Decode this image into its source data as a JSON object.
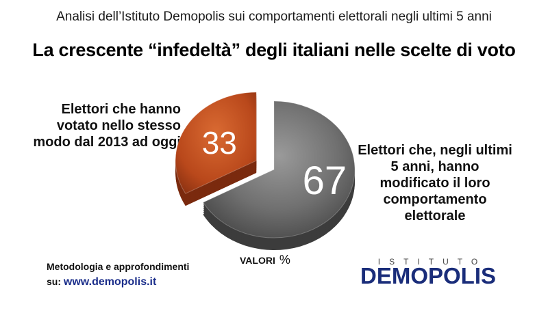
{
  "header": {
    "subtitle": "Analisi dell’Istituto Demopolis sui comportamenti elettorali negli ultimi 5 anni",
    "title": "La crescente “infedeltà” degli italiani nelle scelte di voto"
  },
  "chart_data": {
    "type": "pie",
    "title": "La crescente “infedeltà” degli italiani nelle scelte di voto",
    "unit": "VALORI %",
    "slices": [
      {
        "label": "Elettori che hanno votato nello stesso modo dal 2013 ad oggi",
        "value": 33,
        "display": "33",
        "color": "#c0501f",
        "exploded": true
      },
      {
        "label": "Elettori che, negli ultimi 5 anni, hanno modificato il loro comportamento elettorale",
        "value": 67,
        "display": "67",
        "color": "#6b6b6b",
        "exploded": false
      }
    ]
  },
  "labels": {
    "left": "Elettori che hanno votato nello stesso modo dal 2013 ad oggi",
    "right": "Elettori che, negli ultimi 5 anni, hanno modificato il loro comportamento elettorale"
  },
  "footer": {
    "valori": "VALORI",
    "pct": "%",
    "method_line": "Metodologia e approfondimenti",
    "su": "su:",
    "site": "www.demopolis.it",
    "logo_small": "ISTITUTO",
    "logo_big": "DEMOPOLIS"
  }
}
